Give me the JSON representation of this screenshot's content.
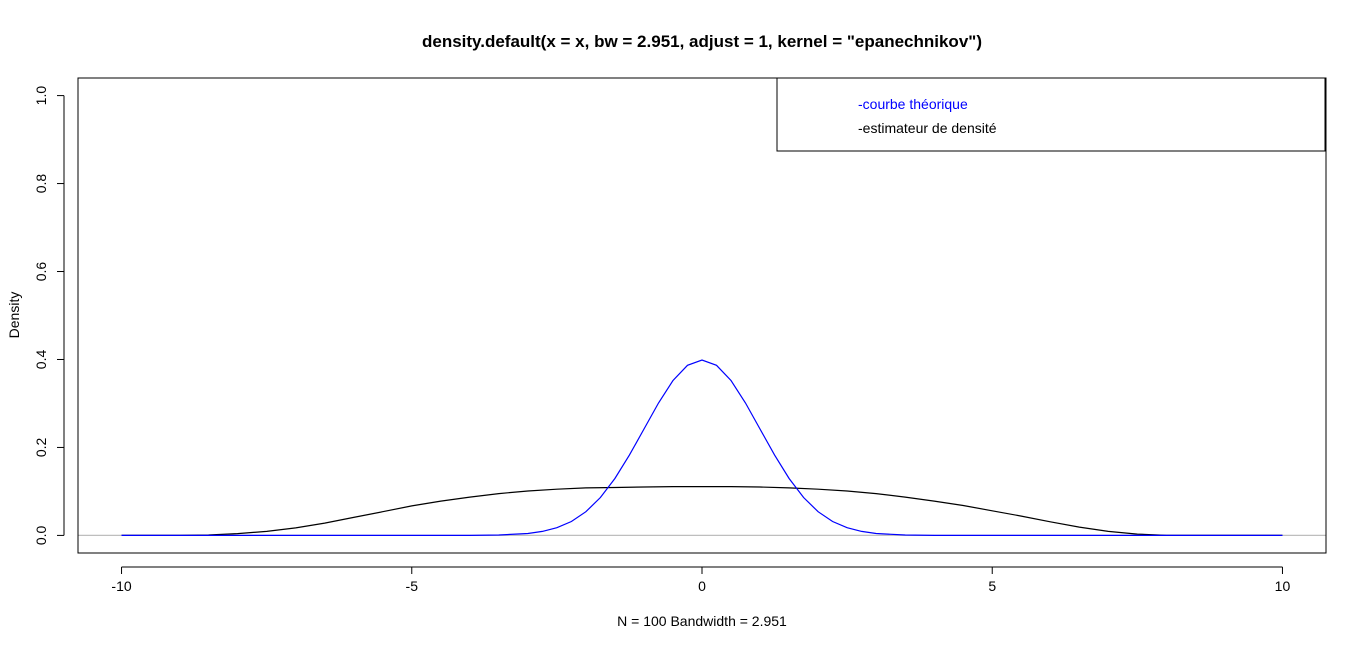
{
  "chart_data": {
    "type": "line",
    "title": "density.default(x = x, bw = 2.951, adjust = 1, kernel = \"epanechnikov\")",
    "xlabel": "N = 100   Bandwidth = 2.951",
    "ylabel": "Density",
    "xlim": [
      -10.75,
      10.75
    ],
    "ylim": [
      -0.04,
      1.04
    ],
    "x_ticks": [
      -10,
      -5,
      0,
      5,
      10
    ],
    "x_tick_labels": [
      "-10",
      "-5",
      "0",
      "5",
      "10"
    ],
    "y_ticks": [
      0.0,
      0.2,
      0.4,
      0.6,
      0.8,
      1.0
    ],
    "y_tick_labels": [
      "0.0",
      "0.2",
      "0.4",
      "0.6",
      "0.8",
      "1.0"
    ],
    "baseline": 0,
    "grid": false,
    "legend": {
      "position": "top-right",
      "entries": [
        {
          "label": "-courbe théorique",
          "color": "#0000ff"
        },
        {
          "label": "-estimateur de densité",
          "color": "#000000"
        }
      ]
    },
    "series": [
      {
        "color": "#000000",
        "x": [
          -10,
          -9,
          -8.5,
          -8,
          -7.5,
          -7,
          -6.5,
          -6,
          -5.5,
          -5,
          -4.5,
          -4,
          -3.5,
          -3,
          -2.5,
          -2,
          -1.5,
          -1,
          -0.5,
          0,
          0.5,
          1,
          1.5,
          2,
          2.5,
          3,
          3.5,
          4,
          4.5,
          5,
          5.5,
          6,
          6.5,
          7,
          7.5,
          8,
          9,
          10
        ],
        "y": [
          0.0,
          0.0,
          0.001,
          0.004,
          0.009,
          0.017,
          0.028,
          0.041,
          0.054,
          0.067,
          0.078,
          0.087,
          0.095,
          0.101,
          0.105,
          0.108,
          0.109,
          0.11,
          0.111,
          0.111,
          0.111,
          0.11,
          0.108,
          0.105,
          0.101,
          0.095,
          0.087,
          0.078,
          0.068,
          0.056,
          0.044,
          0.031,
          0.019,
          0.009,
          0.003,
          0.0,
          0.0,
          0.0
        ]
      },
      {
        "color": "#0000ff",
        "x": [
          -10,
          -4,
          -3.5,
          -3,
          -2.75,
          -2.5,
          -2.25,
          -2,
          -1.75,
          -1.5,
          -1.25,
          -1,
          -0.75,
          -0.5,
          -0.25,
          0,
          0.25,
          0.5,
          0.75,
          1,
          1.25,
          1.5,
          1.75,
          2,
          2.25,
          2.5,
          2.75,
          3,
          3.5,
          4,
          10
        ],
        "y": [
          0.0,
          0.0001,
          0.0009,
          0.0044,
          0.0091,
          0.0175,
          0.0317,
          0.054,
          0.0863,
          0.1295,
          0.1826,
          0.242,
          0.3011,
          0.3521,
          0.3867,
          0.3989,
          0.3867,
          0.3521,
          0.3011,
          0.242,
          0.1826,
          0.1295,
          0.0863,
          0.054,
          0.0317,
          0.0175,
          0.0091,
          0.0044,
          0.0009,
          0.0001,
          0.0
        ]
      }
    ]
  }
}
